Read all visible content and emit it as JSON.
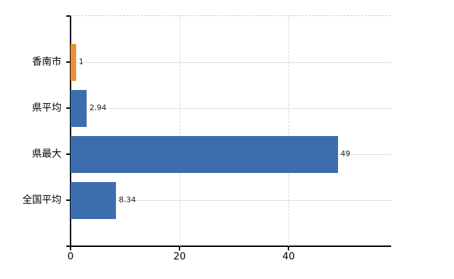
{
  "page": {
    "background": "#ffffff"
  },
  "colors": {
    "bar_default": "#3C6EAE",
    "bar_highlight": "#EC8F2F",
    "axis": "#000000",
    "gridline_horizontal": "#dbe0db",
    "gridline_vertical": "#d8d8d8",
    "plot_top_border": "#cccccc",
    "value_label": "#222222",
    "tick_label": "#000000"
  },
  "chart_data": {
    "type": "bar",
    "orientation": "horizontal",
    "title": "",
    "xlabel": "",
    "ylabel": "",
    "categories": [
      "香南市",
      "県平均",
      "県最大",
      "全国平均"
    ],
    "values": [
      1,
      2.94,
      49,
      8.34
    ],
    "value_labels": [
      "1",
      "2.94",
      "49",
      "8.34"
    ],
    "bar_colors": [
      "#EC8F2F",
      "#3C6EAE",
      "#3C6EAE",
      "#3C6EAE"
    ],
    "highlight_category": "香南市",
    "x_ticks": [
      0,
      20,
      40
    ],
    "x_tick_labels": [
      "0",
      "20",
      "40"
    ],
    "xlim": [
      0,
      58.8
    ],
    "grid": true,
    "legend_position": "none"
  }
}
